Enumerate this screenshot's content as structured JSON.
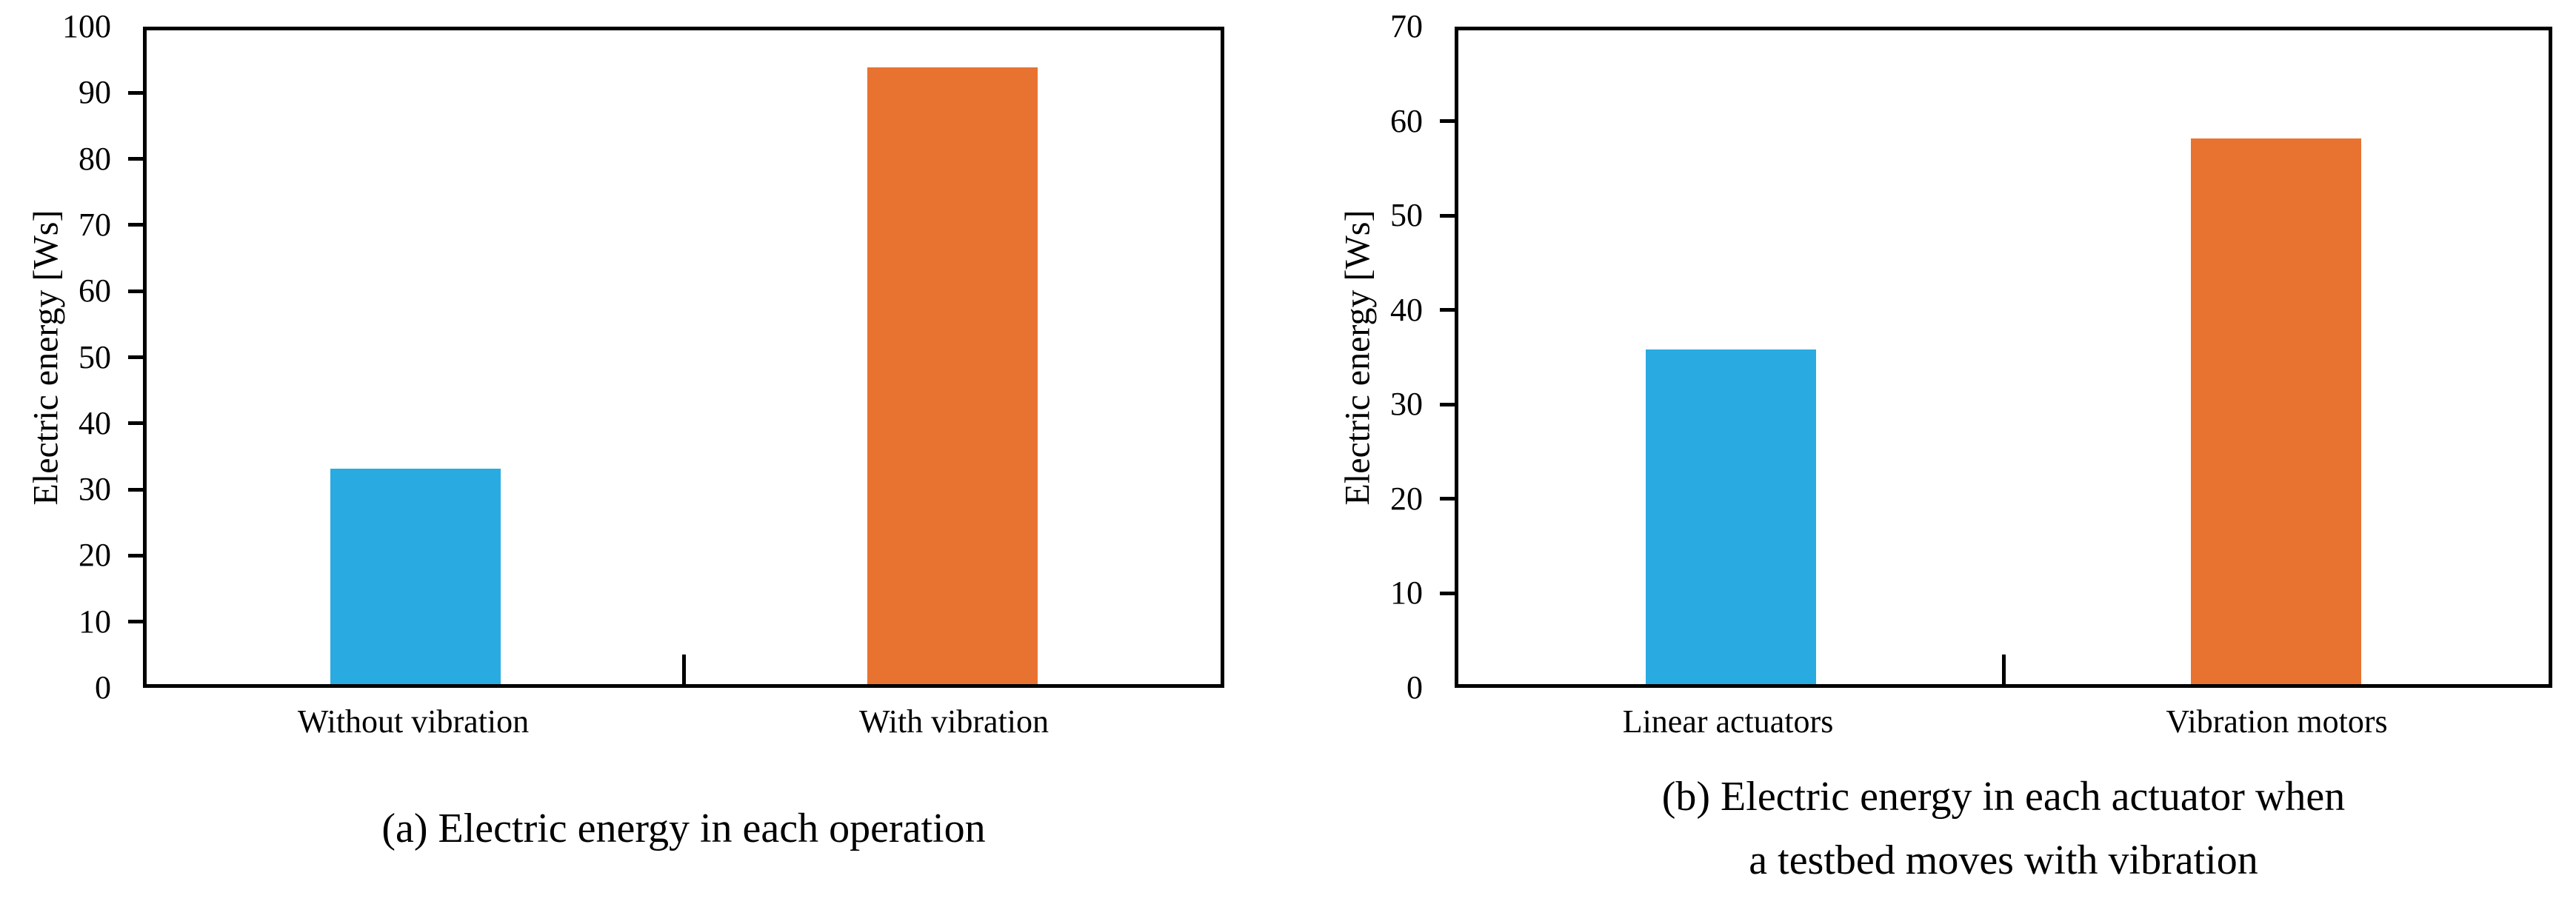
{
  "figure": {
    "background": "#ffffff",
    "axis_color": "#000000",
    "text_color": "#000000"
  },
  "chart_data": [
    {
      "type": "bar",
      "panel": "a",
      "categories": [
        "Without vibration",
        "With vibration"
      ],
      "values": [
        33,
        94.3
      ],
      "bar_colors": [
        "#29ABE2",
        "#E87331"
      ],
      "ylabel": "Electric energy [Ws]",
      "xlabel": "",
      "ylim": [
        0,
        100
      ],
      "ytick_step": 10,
      "yticks": [
        0,
        10,
        20,
        30,
        40,
        50,
        60,
        70,
        80,
        90,
        100
      ],
      "grid": "off",
      "legend": "none",
      "caption_lines": [
        "(a) Electric energy in each operation"
      ]
    },
    {
      "type": "bar",
      "panel": "b",
      "categories": [
        "Linear actuators",
        "Vibration motors"
      ],
      "values": [
        35.8,
        58.4
      ],
      "bar_colors": [
        "#29ABE2",
        "#E87331"
      ],
      "ylabel": "Electric energy [Ws]",
      "xlabel": "",
      "ylim": [
        0,
        70
      ],
      "ytick_step": 10,
      "yticks": [
        0,
        10,
        20,
        30,
        40,
        50,
        60,
        70
      ],
      "grid": "off",
      "legend": "none",
      "caption_lines": [
        "(b) Electric energy in each actuator when",
        "a testbed moves with vibration"
      ]
    }
  ]
}
